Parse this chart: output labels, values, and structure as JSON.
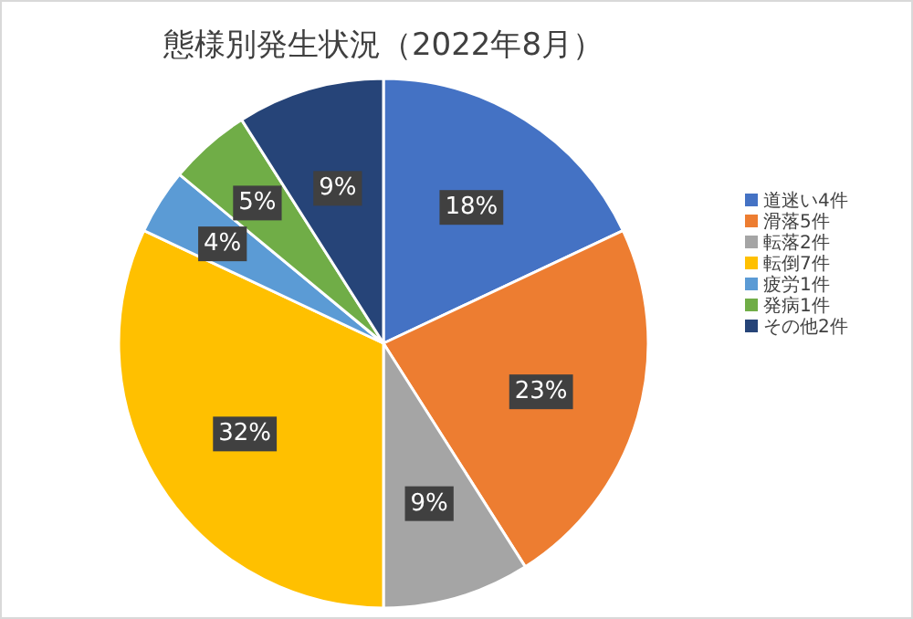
{
  "chart_data": {
    "type": "pie",
    "title": "態様別発生状況（2022年8月）",
    "categories": [
      "道迷い4件",
      "滑落5件",
      "転落2件",
      "転倒7件",
      "疲労1件",
      "発病1件",
      "その他2件"
    ],
    "values": [
      18,
      23,
      9,
      32,
      4,
      5,
      9
    ],
    "value_labels": [
      "18%",
      "23%",
      "9%",
      "32%",
      "4%",
      "5%",
      "9%"
    ],
    "colors": [
      "#4472c4",
      "#ed7d31",
      "#a5a5a5",
      "#ffc000",
      "#5b9bd5",
      "#70ad47",
      "#264478"
    ],
    "legend": "right"
  }
}
